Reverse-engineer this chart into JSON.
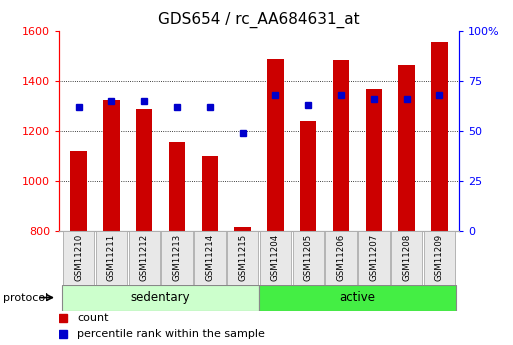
{
  "title": "GDS654 / rc_AA684631_at",
  "samples": [
    "GSM11210",
    "GSM11211",
    "GSM11212",
    "GSM11213",
    "GSM11214",
    "GSM11215",
    "GSM11204",
    "GSM11205",
    "GSM11206",
    "GSM11207",
    "GSM11208",
    "GSM11209"
  ],
  "count_values": [
    1120,
    1325,
    1290,
    1158,
    1100,
    815,
    1490,
    1240,
    1485,
    1370,
    1465,
    1555
  ],
  "percentile_values": [
    62,
    65,
    65,
    62,
    62,
    49,
    68,
    63,
    68,
    66,
    66,
    68
  ],
  "ylim_left": [
    800,
    1600
  ],
  "ylim_right": [
    0,
    100
  ],
  "yticks_left": [
    800,
    1000,
    1200,
    1400,
    1600
  ],
  "yticks_right": [
    0,
    25,
    50,
    75,
    100
  ],
  "ytick_labels_right": [
    "0",
    "25",
    "50",
    "75",
    "100%"
  ],
  "bar_color": "#cc0000",
  "dot_color": "#0000cc",
  "sedentary_color": "#ccffcc",
  "active_color": "#44ee44",
  "protocol_label": "protocol",
  "legend_count": "count",
  "legend_percentile": "percentile rank within the sample",
  "bar_width": 0.5,
  "n_sedentary": 6,
  "n_active": 6
}
